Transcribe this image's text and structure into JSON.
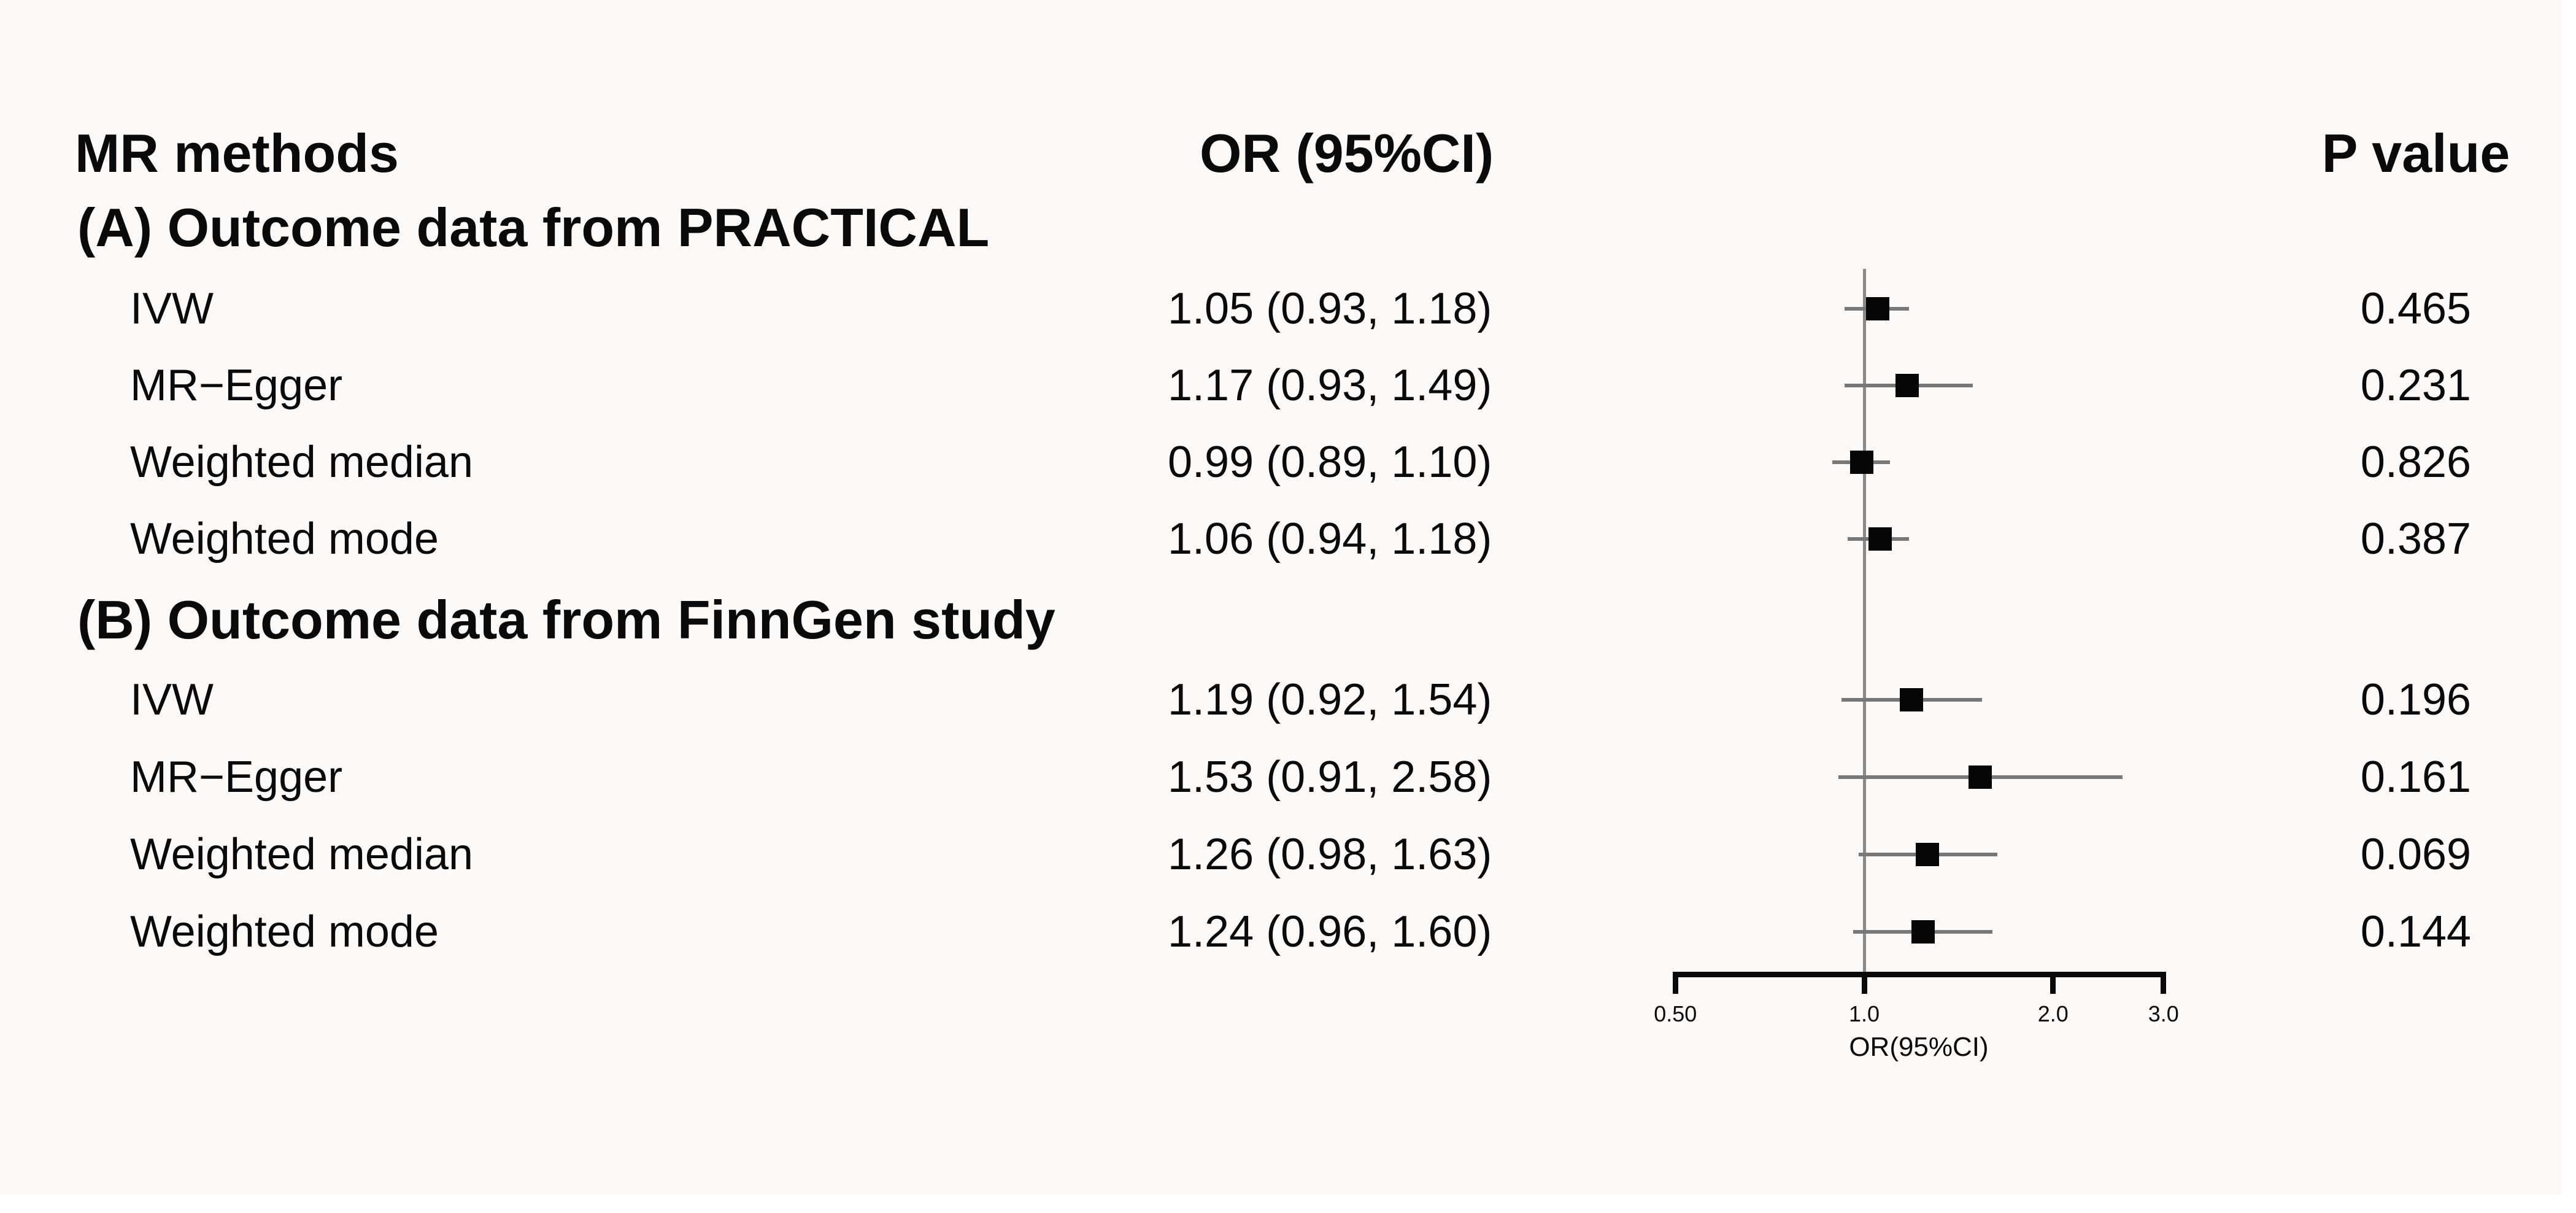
{
  "columns": {
    "methods": "MR methods",
    "or": "OR (95%CI)",
    "p": "P value"
  },
  "chart_data": {
    "type": "forest",
    "title": "",
    "xlabel": "OR(95%CI)",
    "x_scale": "log",
    "x_ticks": [
      0.5,
      1.0,
      2.0,
      3.0
    ],
    "x_tick_labels": [
      "0.50",
      "1.0",
      "2.0",
      "3.0"
    ],
    "xlim": [
      0.5,
      3.0
    ],
    "ref_line": 1.0,
    "marker": "black-square",
    "groups": [
      {
        "name": "(A) Outcome data from PRACTICAL",
        "rows": [
          {
            "method": "IVW",
            "or": 1.05,
            "ci_low": 0.93,
            "ci_high": 1.18,
            "or_text": "1.05 (0.93, 1.18)",
            "p_value": "0.465"
          },
          {
            "method": "MR−Egger",
            "or": 1.17,
            "ci_low": 0.93,
            "ci_high": 1.49,
            "or_text": "1.17 (0.93, 1.49)",
            "p_value": "0.231"
          },
          {
            "method": "Weighted median",
            "or": 0.99,
            "ci_low": 0.89,
            "ci_high": 1.1,
            "or_text": "0.99 (0.89, 1.10)",
            "p_value": "0.826"
          },
          {
            "method": "Weighted mode",
            "or": 1.06,
            "ci_low": 0.94,
            "ci_high": 1.18,
            "or_text": "1.06 (0.94, 1.18)",
            "p_value": "0.387"
          }
        ]
      },
      {
        "name": "(B) Outcome data from FinnGen study",
        "rows": [
          {
            "method": "IVW",
            "or": 1.19,
            "ci_low": 0.92,
            "ci_high": 1.54,
            "or_text": "1.19 (0.92, 1.54)",
            "p_value": "0.196"
          },
          {
            "method": "MR−Egger",
            "or": 1.53,
            "ci_low": 0.91,
            "ci_high": 2.58,
            "or_text": "1.53 (0.91, 2.58)",
            "p_value": "0.161"
          },
          {
            "method": "Weighted median",
            "or": 1.26,
            "ci_low": 0.98,
            "ci_high": 1.63,
            "or_text": "1.26 (0.98, 1.63)",
            "p_value": "0.069"
          },
          {
            "method": "Weighted mode",
            "or": 1.24,
            "ci_low": 0.96,
            "ci_high": 1.6,
            "or_text": "1.24 (0.96, 1.60)",
            "p_value": "0.144"
          }
        ]
      }
    ]
  },
  "colors": {
    "background": "#FDF9F6",
    "text": "#0a0a0a",
    "ci_line": "#787878",
    "ref_line": "#8a8a8a",
    "marker": "#060606",
    "axis": "#0a0a0a"
  }
}
